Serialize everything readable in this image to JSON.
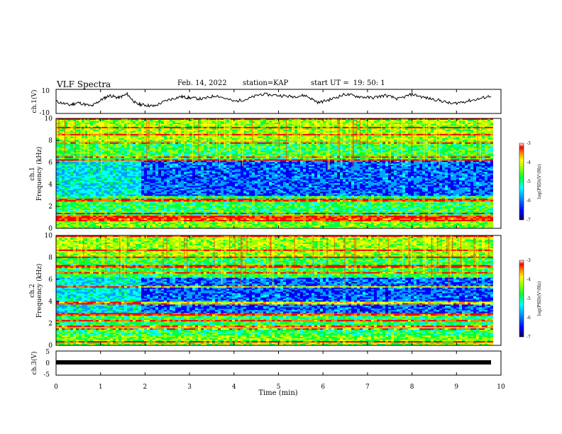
{
  "header": {
    "title": "VLF Spectra",
    "date": "Feb. 14, 2022",
    "station_label": "station=",
    "station": "KAP",
    "start_label": "start  UT  =",
    "start_time": "19: 50: 1"
  },
  "chart_data": [
    {
      "type": "line",
      "panel": "ch1-waveform",
      "ylabel": "ch.1(V)",
      "ylim": [
        -10,
        10
      ],
      "yticks": [
        "10",
        "-10"
      ],
      "x": [
        0,
        0.3,
        0.5,
        0.8,
        1.0,
        1.2,
        1.4,
        1.6,
        1.8,
        2.0,
        2.2,
        2.5,
        2.8,
        3.0,
        3.3,
        3.6,
        4.0,
        4.3,
        4.6,
        5.0,
        5.3,
        5.6,
        5.9,
        6.2,
        6.5,
        6.8,
        7.1,
        7.4,
        7.7,
        8.0,
        8.3,
        8.6,
        8.9,
        9.2,
        9.5,
        9.8
      ],
      "y": [
        0,
        -3,
        -1,
        -4,
        1,
        5,
        3,
        6,
        -2,
        -3,
        -4,
        1,
        4,
        3,
        2,
        5,
        0,
        2,
        6,
        5,
        4,
        5,
        -1,
        2,
        6,
        4,
        3,
        5,
        2,
        6,
        3,
        1,
        -2,
        0,
        2,
        5
      ],
      "line_color": "#000000"
    },
    {
      "type": "heatmap",
      "panel": "ch1-spectrogram",
      "ylabel": "ch.1\nFrequency (kHz)",
      "ylim": [
        0,
        10
      ],
      "yticks": [
        "0",
        "2",
        "4",
        "6",
        "8",
        "10"
      ],
      "colorbar": {
        "label": "log(PSD)(V²/Hz)",
        "range": [
          -7,
          -3
        ],
        "ticks": [
          "-3",
          "-4",
          "-5",
          "-6",
          "-7"
        ]
      }
    },
    {
      "type": "heatmap",
      "panel": "ch2-spectrogram",
      "ylabel": "ch.2\nFrequency (kHz)",
      "ylim": [
        0,
        10
      ],
      "yticks": [
        "0",
        "2",
        "4",
        "6",
        "8",
        "10"
      ],
      "colorbar": {
        "label": "log(PSD)(V²/Hz)",
        "range": [
          -7,
          -3
        ],
        "ticks": [
          "-3",
          "-4",
          "-5",
          "-6",
          "-7"
        ]
      }
    },
    {
      "type": "line",
      "panel": "ch3-waveform",
      "ylabel": "ch.3(V)",
      "ylim": [
        -5,
        5
      ],
      "yticks": [
        "5",
        "0",
        "-5"
      ],
      "x": [
        0,
        9.8
      ],
      "y": [
        0,
        0
      ],
      "line_color": "#000000"
    }
  ],
  "x_axis": {
    "label": "Time (min)",
    "range": [
      0,
      10
    ],
    "ticks": [
      "0",
      "1",
      "2",
      "3",
      "4",
      "5",
      "6",
      "7",
      "8",
      "9",
      "10"
    ]
  },
  "colormap": [
    "#000080",
    "#0000ff",
    "#00a0ff",
    "#00ffff",
    "#00ff40",
    "#a0ff00",
    "#ffff00",
    "#ff8000",
    "#ff0000",
    "#ffffff"
  ]
}
